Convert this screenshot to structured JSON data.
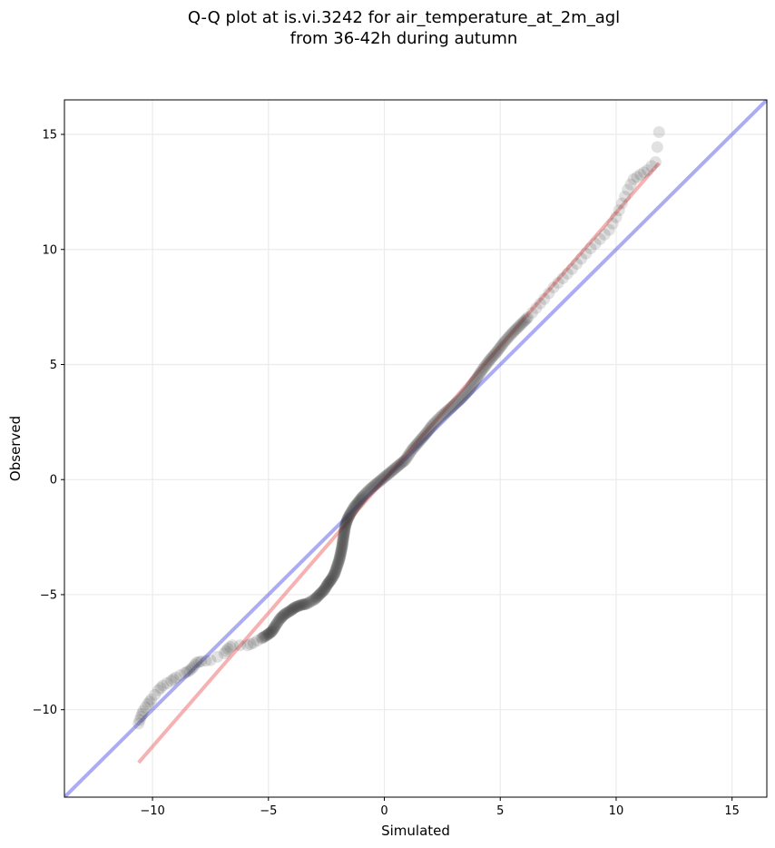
{
  "title_line1": "Q-Q plot at is.vi.3242 for air_temperature_at_2m_agl",
  "title_line2": "from 36-42h during autumn",
  "chart_data": {
    "type": "scatter",
    "title": "Q-Q plot at is.vi.3242 for air_temperature_at_2m_agl\nfrom 36-42h during autumn",
    "xlabel": "Simulated",
    "ylabel": "Observed",
    "xlim": [
      -13.8,
      16.5
    ],
    "ylim": [
      -13.8,
      16.5
    ],
    "xticks": [
      -10,
      -5,
      0,
      5,
      10,
      15
    ],
    "yticks": [
      -10,
      -5,
      0,
      5,
      10,
      15
    ],
    "xtick_labels": [
      "−10",
      "−5",
      "0",
      "5",
      "10",
      "15"
    ],
    "ytick_labels": [
      "−10",
      "−5",
      "0",
      "5",
      "10",
      "15"
    ],
    "grid": true,
    "colors": {
      "points": "#333333",
      "identity_line": "#5a5ae8",
      "fit_line": "#ee6666"
    },
    "lines": [
      {
        "role": "identity",
        "x": [
          -13.8,
          16.5
        ],
        "y": [
          -13.8,
          16.5
        ]
      },
      {
        "role": "fit",
        "x": [
          -10.6,
          11.85
        ],
        "y": [
          -12.3,
          13.75
        ]
      }
    ],
    "points": [
      [
        -10.6,
        -10.6
      ],
      [
        -10.5,
        -10.3
      ],
      [
        -10.4,
        -10.05
      ],
      [
        -10.2,
        -9.75
      ],
      [
        -10.05,
        -9.55
      ],
      [
        -9.75,
        -9.15
      ],
      [
        -9.55,
        -8.95
      ],
      [
        -9.2,
        -8.75
      ],
      [
        -9.0,
        -8.6
      ],
      [
        -8.6,
        -8.4
      ],
      [
        -8.4,
        -8.3
      ],
      [
        -8.25,
        -8.15
      ],
      [
        -8.1,
        -7.95
      ],
      [
        -7.9,
        -7.9
      ],
      [
        -7.5,
        -7.85
      ],
      [
        -6.9,
        -7.55
      ],
      [
        -6.75,
        -7.35
      ],
      [
        -6.55,
        -7.2
      ],
      [
        -5.9,
        -7.2
      ],
      [
        -5.65,
        -7.1
      ],
      [
        -5.3,
        -6.9
      ],
      [
        -5.05,
        -6.75
      ],
      [
        -4.85,
        -6.6
      ],
      [
        -4.7,
        -6.35
      ],
      [
        -4.5,
        -6.05
      ],
      [
        -4.3,
        -5.85
      ],
      [
        -4.05,
        -5.7
      ],
      [
        -3.85,
        -5.55
      ],
      [
        -3.6,
        -5.45
      ],
      [
        -3.35,
        -5.4
      ],
      [
        -3.0,
        -5.2
      ],
      [
        -2.8,
        -5.0
      ],
      [
        -2.6,
        -4.8
      ],
      [
        -2.45,
        -4.55
      ],
      [
        -2.3,
        -4.35
      ],
      [
        -2.15,
        -4.1
      ],
      [
        -2.05,
        -3.8
      ],
      [
        -1.95,
        -3.5
      ],
      [
        -1.88,
        -3.2
      ],
      [
        -1.82,
        -2.9
      ],
      [
        -1.78,
        -2.6
      ],
      [
        -1.73,
        -2.3
      ],
      [
        -1.68,
        -2.0
      ],
      [
        -1.6,
        -1.75
      ],
      [
        -1.48,
        -1.5
      ],
      [
        -1.3,
        -1.2
      ],
      [
        -1.1,
        -0.95
      ],
      [
        -0.9,
        -0.7
      ],
      [
        -0.6,
        -0.4
      ],
      [
        -0.3,
        -0.15
      ],
      [
        0.0,
        0.1
      ],
      [
        0.3,
        0.35
      ],
      [
        0.6,
        0.6
      ],
      [
        0.9,
        0.85
      ],
      [
        1.2,
        1.3
      ],
      [
        1.5,
        1.65
      ],
      [
        1.8,
        2.0
      ],
      [
        2.1,
        2.4
      ],
      [
        2.5,
        2.8
      ],
      [
        2.9,
        3.15
      ],
      [
        3.3,
        3.5
      ],
      [
        3.65,
        3.9
      ],
      [
        3.95,
        4.35
      ],
      [
        4.25,
        4.8
      ],
      [
        4.55,
        5.2
      ],
      [
        4.85,
        5.55
      ],
      [
        5.15,
        5.95
      ],
      [
        5.5,
        6.35
      ],
      [
        5.85,
        6.7
      ],
      [
        6.2,
        7.05
      ],
      [
        6.55,
        7.45
      ],
      [
        6.9,
        7.85
      ],
      [
        7.3,
        8.35
      ],
      [
        7.7,
        8.75
      ],
      [
        8.1,
        9.15
      ],
      [
        8.5,
        9.6
      ],
      [
        8.9,
        10.05
      ],
      [
        9.3,
        10.45
      ],
      [
        9.7,
        10.85
      ],
      [
        10.0,
        11.4
      ],
      [
        10.25,
        12.0
      ],
      [
        10.5,
        12.6
      ],
      [
        10.75,
        13.05
      ],
      [
        11.05,
        13.25
      ],
      [
        11.35,
        13.45
      ],
      [
        11.7,
        13.8
      ],
      [
        11.85,
        15.1
      ]
    ]
  }
}
